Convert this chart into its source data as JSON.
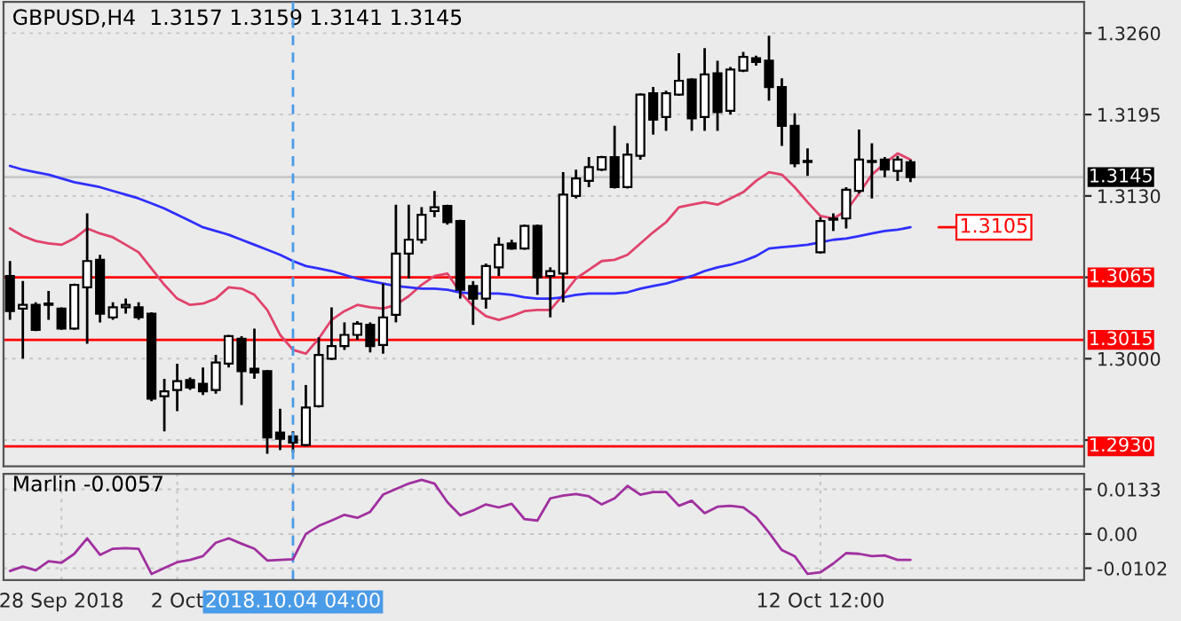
{
  "chart_data": [
    {
      "type": "candlestick",
      "title": "GBPUSD,H4  1.3157 1.3159 1.3141 1.3145",
      "categories": [
        null,
        null,
        null,
        null,
        null,
        null,
        null,
        null,
        null,
        null,
        null,
        null,
        null,
        null,
        null,
        null,
        null,
        null,
        null,
        null,
        null,
        null,
        null,
        null,
        null,
        null,
        null,
        null,
        null,
        null,
        null,
        null,
        null,
        null,
        null,
        null,
        null,
        null,
        null,
        null,
        null,
        null,
        null,
        null,
        null,
        null,
        null,
        null,
        null,
        null,
        null,
        null,
        null,
        null,
        null,
        null,
        null,
        null,
        null,
        null,
        null,
        null,
        null,
        null,
        null,
        null,
        null,
        null,
        null,
        null,
        null
      ],
      "ohlc": [
        [
          1.3066,
          1.3078,
          1.3031,
          1.3038
        ],
        [
          1.304,
          1.3062,
          1.3,
          1.3043
        ],
        [
          1.3043,
          1.3045,
          1.3022,
          1.3023
        ],
        [
          1.3043,
          1.3054,
          1.3031,
          1.3044
        ],
        [
          1.304,
          1.3041,
          1.3023,
          1.3024
        ],
        [
          1.3024,
          1.306,
          1.3023,
          1.3059
        ],
        [
          1.3057,
          1.3116,
          1.3012,
          1.3078
        ],
        [
          1.3079,
          1.3083,
          1.3029,
          1.3036
        ],
        [
          1.3033,
          1.3045,
          1.3031,
          1.3041
        ],
        [
          1.3041,
          1.3048,
          1.3036,
          1.3043
        ],
        [
          1.3041,
          1.3045,
          1.3031,
          1.3033
        ],
        [
          1.3036,
          1.3037,
          1.2966,
          1.2968
        ],
        [
          1.297,
          1.2984,
          1.2942,
          1.2974
        ],
        [
          1.2975,
          1.2996,
          1.2958,
          1.2982
        ],
        [
          1.2983,
          1.2985,
          1.2975,
          1.2977
        ],
        [
          1.298,
          1.2993,
          1.2971,
          1.2974
        ],
        [
          1.2975,
          1.3003,
          1.2972,
          1.2997
        ],
        [
          1.2996,
          1.3019,
          1.2993,
          1.3018
        ],
        [
          1.3016,
          1.3018,
          1.2963,
          1.299
        ],
        [
          1.2992,
          1.3024,
          1.2984,
          1.2989
        ],
        [
          1.299,
          1.2991,
          1.2924,
          1.2937
        ],
        [
          1.2941,
          1.296,
          1.2927,
          1.2936
        ],
        [
          1.2938,
          1.2942,
          1.2925,
          1.2933
        ],
        [
          1.2931,
          1.2979,
          1.293,
          1.2961
        ],
        [
          1.2962,
          1.3017,
          1.2961,
          1.3003
        ],
        [
          1.3,
          1.3041,
          1.2999,
          1.301
        ],
        [
          1.301,
          1.3029,
          1.3007,
          1.3019
        ],
        [
          1.3019,
          1.303,
          1.3015,
          1.3028
        ],
        [
          1.3027,
          1.3029,
          1.3005,
          1.301
        ],
        [
          1.3011,
          1.306,
          1.3004,
          1.3033
        ],
        [
          1.3035,
          1.3123,
          1.3029,
          1.3084
        ],
        [
          1.3084,
          1.3123,
          1.3064,
          1.3095
        ],
        [
          1.3095,
          1.3121,
          1.3092,
          1.3115
        ],
        [
          1.3118,
          1.3134,
          1.3113,
          1.3121
        ],
        [
          1.3122,
          1.3123,
          1.3107,
          1.3109
        ],
        [
          1.311,
          1.3111,
          1.3048,
          1.3055
        ],
        [
          1.3058,
          1.3062,
          1.3027,
          1.3048
        ],
        [
          1.3048,
          1.3076,
          1.304,
          1.3074
        ],
        [
          1.3073,
          1.3097,
          1.3066,
          1.3091
        ],
        [
          1.3092,
          1.3095,
          1.3087,
          1.3088
        ],
        [
          1.3088,
          1.3107,
          1.3087,
          1.3106
        ],
        [
          1.3106,
          1.3107,
          1.3051,
          1.3065
        ],
        [
          1.3066,
          1.3073,
          1.3033,
          1.307
        ],
        [
          1.3068,
          1.3149,
          1.3045,
          1.3131
        ],
        [
          1.313,
          1.3151,
          1.3128,
          1.3144
        ],
        [
          1.3142,
          1.3161,
          1.3137,
          1.3153
        ],
        [
          1.3151,
          1.3162,
          1.315,
          1.3161
        ],
        [
          1.3161,
          1.3186,
          1.3136,
          1.3137
        ],
        [
          1.3137,
          1.3172,
          1.3136,
          1.3163
        ],
        [
          1.3162,
          1.3212,
          1.3159,
          1.3211
        ],
        [
          1.3212,
          1.3217,
          1.3179,
          1.3191
        ],
        [
          1.3193,
          1.3214,
          1.3182,
          1.3212
        ],
        [
          1.3211,
          1.3244,
          1.321,
          1.3222
        ],
        [
          1.3223,
          1.3224,
          1.3182,
          1.3192
        ],
        [
          1.3193,
          1.3248,
          1.3182,
          1.3227
        ],
        [
          1.3228,
          1.3238,
          1.3182,
          1.3197
        ],
        [
          1.3198,
          1.3233,
          1.3195,
          1.3231
        ],
        [
          1.323,
          1.3245,
          1.3229,
          1.3241
        ],
        [
          1.324,
          1.3242,
          1.3234,
          1.3237
        ],
        [
          1.3238,
          1.3258,
          1.3206,
          1.3217
        ],
        [
          1.3217,
          1.3224,
          1.317,
          1.3186
        ],
        [
          1.3186,
          1.3196,
          1.3153,
          1.3156
        ],
        [
          1.3157,
          1.3168,
          1.3146,
          1.3158
        ],
        [
          1.3085,
          1.3113,
          1.3084,
          1.311
        ],
        [
          1.3111,
          1.3116,
          1.3102,
          1.3112
        ],
        [
          1.3112,
          1.3137,
          1.3104,
          1.3135
        ],
        [
          1.3134,
          1.3183,
          1.3132,
          1.3159
        ],
        [
          1.3157,
          1.3172,
          1.3128,
          1.3158
        ],
        [
          1.3159,
          1.3161,
          1.3145,
          1.3151
        ],
        [
          1.315,
          1.3162,
          1.3142,
          1.3159
        ],
        [
          1.3157,
          1.3159,
          1.3141,
          1.3145
        ]
      ],
      "series": [
        {
          "type": "line",
          "color": "#e0436b",
          "values": [
            1.3104,
            1.3098,
            1.3094,
            1.3092,
            1.3091,
            1.3096,
            1.3104,
            1.31,
            1.3097,
            1.3091,
            1.3085,
            1.3072,
            1.3059,
            1.3048,
            1.3043,
            1.3044,
            1.3048,
            1.3057,
            1.3056,
            1.3051,
            1.3039,
            1.3019,
            1.3007,
            1.3004,
            1.3016,
            1.3031,
            1.3038,
            1.3043,
            1.3041,
            1.304,
            1.3043,
            1.305,
            1.3059,
            1.3066,
            1.3068,
            1.3053,
            1.3042,
            1.3034,
            1.3031,
            1.3034,
            1.3038,
            1.3039,
            1.3039,
            1.3051,
            1.3064,
            1.3071,
            1.3078,
            1.3079,
            1.3083,
            1.3092,
            1.3101,
            1.3109,
            1.3121,
            1.3123,
            1.3125,
            1.3123,
            1.3128,
            1.3133,
            1.3142,
            1.3149,
            1.3147,
            1.3137,
            1.3125,
            1.3114,
            1.3112,
            1.3118,
            1.3132,
            1.3147,
            1.3156,
            1.3164,
            1.3159
          ]
        },
        {
          "type": "line",
          "color": "#2f2fff",
          "values": [
            1.3154,
            1.3151,
            1.3149,
            1.3147,
            1.3144,
            1.3141,
            1.3139,
            1.3137,
            1.3134,
            1.3131,
            1.3128,
            1.3124,
            1.312,
            1.3115,
            1.311,
            1.3105,
            1.3102,
            1.3099,
            1.3095,
            1.3091,
            1.3087,
            1.3083,
            1.3078,
            1.3074,
            1.3072,
            1.307,
            1.3067,
            1.3064,
            1.3062,
            1.306,
            1.3058,
            1.3057,
            1.3056,
            1.3056,
            1.3055,
            1.3053,
            1.3052,
            1.3052,
            1.3052,
            1.3051,
            1.3049,
            1.3048,
            1.3048,
            1.3049,
            1.3051,
            1.3052,
            1.3052,
            1.3052,
            1.3053,
            1.3056,
            1.3058,
            1.306,
            1.3063,
            1.3066,
            1.307,
            1.3073,
            1.3075,
            1.3078,
            1.3082,
            1.3088,
            1.3089,
            1.309,
            1.3091,
            1.3093,
            1.3095,
            1.3096,
            1.3098,
            1.31,
            1.3102,
            1.3103,
            1.3105
          ]
        }
      ],
      "ylim": [
        1.2914,
        1.3285
      ],
      "yticks": [
        {
          "value": 1.326,
          "label": "1.3260"
        },
        {
          "value": 1.3195,
          "label": "1.3195"
        },
        {
          "value": 1.313,
          "label": "1.3130"
        },
        {
          "value": 1.3065,
          "label": null
        },
        {
          "value": 1.3,
          "label": "1.3000"
        },
        {
          "value": 1.2935,
          "label": null
        }
      ],
      "ref_lines": [
        {
          "axis": "y",
          "value": 1.3145,
          "label": "1.3145",
          "color": "#c8c8c8"
        },
        {
          "axis": "y",
          "value": 1.3065,
          "label": "1.3065",
          "color": "#ff0000"
        },
        {
          "axis": "y",
          "value": 1.3015,
          "label": "1.3015",
          "color": "#ff0000"
        },
        {
          "axis": "y",
          "value": 1.293,
          "label": "1.2930",
          "color": "#ff0000"
        }
      ],
      "annotations": [
        "1.3105"
      ],
      "grid": true,
      "legend": false,
      "tick_labels": "y"
    },
    {
      "type": "line",
      "title": "Marlin -0.0057",
      "categories": [
        null,
        null,
        null,
        null,
        "28 Sep 2018",
        null,
        null,
        null,
        null,
        null,
        null,
        null,
        null,
        "2 Oct",
        null,
        null,
        null,
        null,
        null,
        null,
        null,
        null,
        "2018.10.04 04:00",
        null,
        null,
        null,
        null,
        null,
        null,
        null,
        null,
        null,
        null,
        null,
        null,
        null,
        null,
        null,
        null,
        null,
        null,
        null,
        null,
        null,
        null,
        null,
        null,
        null,
        null,
        null,
        null,
        null,
        null,
        null,
        null,
        null,
        null,
        null,
        null,
        null,
        null,
        null,
        null,
        "12 Oct 12:00",
        null,
        null,
        null,
        null,
        null,
        null,
        null
      ],
      "series": [
        {
          "color": "#a030a0",
          "values": [
            -0.011,
            -0.0097,
            -0.0108,
            -0.0081,
            -0.0086,
            -0.0059,
            -0.0013,
            -0.0062,
            -0.0044,
            -0.0042,
            -0.0044,
            -0.0119,
            -0.0101,
            -0.0084,
            -0.0077,
            -0.0066,
            -0.0026,
            -0.0013,
            -0.0029,
            -0.0044,
            -0.0079,
            -0.0077,
            -0.0075,
            0.0,
            0.0024,
            0.004,
            0.0057,
            0.0048,
            0.0066,
            0.0117,
            0.0134,
            0.015,
            0.0161,
            0.015,
            0.0095,
            0.0055,
            0.007,
            0.0088,
            0.0079,
            0.009,
            0.0044,
            0.004,
            0.0106,
            0.0114,
            0.0119,
            0.0112,
            0.0088,
            0.0106,
            0.0143,
            0.0117,
            0.0125,
            0.0125,
            0.0084,
            0.0099,
            0.0062,
            0.0081,
            0.0084,
            0.0079,
            0.0051,
            0.0004,
            -0.0048,
            -0.0066,
            -0.0119,
            -0.0114,
            -0.0088,
            -0.0057,
            -0.0059,
            -0.0066,
            -0.0064,
            -0.0077,
            -0.0077
          ]
        }
      ],
      "ylim": [
        -0.0137,
        0.0179
      ],
      "yticks": [
        {
          "value": 0.0133,
          "label": "0.0133"
        },
        {
          "value": 0,
          "label": "0.00"
        },
        {
          "value": -0.0102,
          "label": "-0.0102"
        }
      ],
      "ref_lines": [
        {
          "axis": "x",
          "value": "2018.10.04 04:00",
          "color": "#4a9be8",
          "line_style": "dashed"
        }
      ],
      "grid": true,
      "legend": false
    }
  ]
}
